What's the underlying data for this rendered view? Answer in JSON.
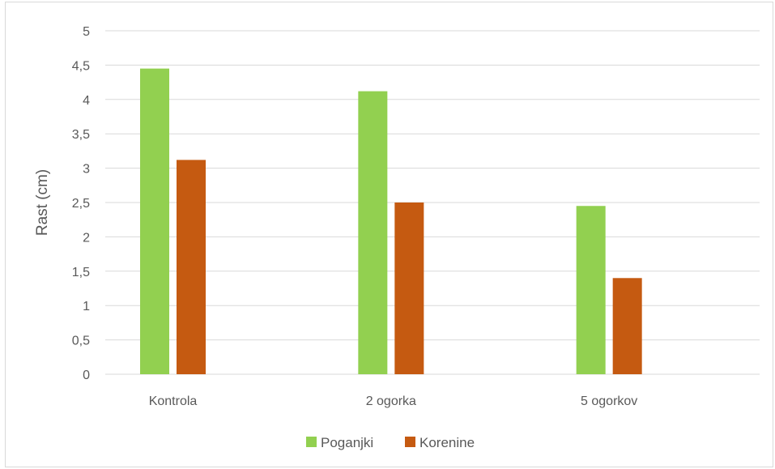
{
  "chart_data": {
    "type": "bar",
    "categories": [
      "Kontrola",
      "2 ogorka",
      "5 ogorkov"
    ],
    "series": [
      {
        "name": "Poganjki",
        "values": [
          4.45,
          4.12,
          2.45
        ],
        "color": "#92d050"
      },
      {
        "name": "Korenine",
        "values": [
          3.12,
          2.5,
          1.4
        ],
        "color": "#c55a11"
      }
    ],
    "ylabel": "Rast (cm)",
    "ylim": [
      0,
      5
    ],
    "yticks": [
      0,
      0.5,
      1,
      1.5,
      2,
      2.5,
      3,
      3.5,
      4,
      4.5,
      5
    ],
    "ytick_labels": [
      "0",
      "0,5",
      "1",
      "1,5",
      "2",
      "2,5",
      "3",
      "3,5",
      "4",
      "4,5",
      "5"
    ],
    "grid": true,
    "gridline_color": "#d9d9d9",
    "legend_position": "bottom"
  }
}
